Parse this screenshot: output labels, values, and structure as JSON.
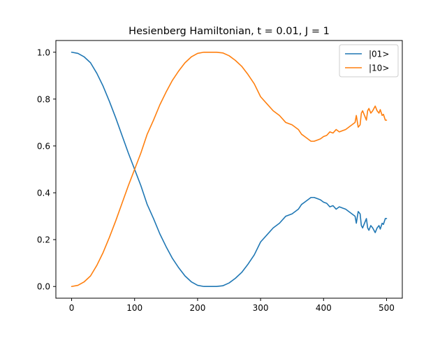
{
  "chart_data": {
    "type": "line",
    "title": "Hesienberg Hamiltonian, t = 0.01, J = 1",
    "xlabel": "",
    "ylabel": "",
    "xlim": [
      -25,
      525
    ],
    "ylim": [
      -0.05,
      1.05
    ],
    "xticks": [
      0,
      100,
      200,
      300,
      400,
      500
    ],
    "yticks": [
      0.0,
      0.2,
      0.4,
      0.6,
      0.8,
      1.0
    ],
    "xtick_labels": [
      "0",
      "100",
      "200",
      "300",
      "400",
      "500"
    ],
    "ytick_labels": [
      "0.0",
      "0.2",
      "0.4",
      "0.6",
      "0.8",
      "1.0"
    ],
    "grid": false,
    "legend_position": "top-right",
    "series": [
      {
        "name": "|01>",
        "color": "#1f77b4",
        "x": [
          0,
          10,
          20,
          30,
          40,
          50,
          60,
          70,
          80,
          90,
          100,
          110,
          120,
          130,
          140,
          150,
          160,
          170,
          180,
          190,
          200,
          210,
          220,
          230,
          240,
          250,
          260,
          270,
          280,
          290,
          300,
          310,
          320,
          330,
          340,
          350,
          355,
          360,
          365,
          370,
          375,
          380,
          385,
          390,
          395,
          400,
          405,
          410,
          415,
          420,
          425,
          430,
          435,
          440,
          445,
          450,
          452,
          455,
          458,
          460,
          462,
          465,
          468,
          470,
          472,
          475,
          478,
          480,
          482,
          485,
          488,
          490,
          493,
          495,
          498,
          500
        ],
        "y": [
          1.0,
          0.995,
          0.98,
          0.955,
          0.91,
          0.855,
          0.79,
          0.72,
          0.645,
          0.57,
          0.5,
          0.43,
          0.35,
          0.29,
          0.225,
          0.17,
          0.12,
          0.08,
          0.045,
          0.02,
          0.005,
          0.0,
          0.0,
          0.0,
          0.003,
          0.015,
          0.035,
          0.06,
          0.095,
          0.135,
          0.19,
          0.22,
          0.25,
          0.27,
          0.3,
          0.31,
          0.32,
          0.33,
          0.35,
          0.36,
          0.37,
          0.38,
          0.38,
          0.375,
          0.37,
          0.36,
          0.355,
          0.34,
          0.345,
          0.33,
          0.34,
          0.335,
          0.33,
          0.32,
          0.31,
          0.3,
          0.27,
          0.32,
          0.31,
          0.26,
          0.25,
          0.27,
          0.29,
          0.25,
          0.24,
          0.26,
          0.25,
          0.24,
          0.23,
          0.25,
          0.26,
          0.245,
          0.27,
          0.265,
          0.29,
          0.29
        ]
      },
      {
        "name": "|10>",
        "color": "#ff7f0e",
        "x": [
          0,
          10,
          20,
          30,
          40,
          50,
          60,
          70,
          80,
          90,
          100,
          110,
          120,
          130,
          140,
          150,
          160,
          170,
          180,
          190,
          200,
          210,
          220,
          230,
          240,
          250,
          260,
          270,
          280,
          290,
          300,
          310,
          320,
          330,
          340,
          350,
          355,
          360,
          365,
          370,
          375,
          380,
          385,
          390,
          395,
          400,
          405,
          410,
          415,
          420,
          425,
          430,
          435,
          440,
          445,
          450,
          452,
          455,
          458,
          460,
          462,
          465,
          468,
          470,
          472,
          475,
          478,
          480,
          482,
          485,
          488,
          490,
          493,
          495,
          498,
          500
        ],
        "y": [
          0.0,
          0.005,
          0.02,
          0.045,
          0.09,
          0.145,
          0.21,
          0.28,
          0.355,
          0.43,
          0.5,
          0.57,
          0.65,
          0.71,
          0.775,
          0.83,
          0.88,
          0.92,
          0.955,
          0.98,
          0.995,
          1.0,
          1.0,
          1.0,
          0.997,
          0.985,
          0.965,
          0.94,
          0.905,
          0.865,
          0.81,
          0.78,
          0.75,
          0.73,
          0.7,
          0.69,
          0.68,
          0.67,
          0.65,
          0.64,
          0.63,
          0.62,
          0.62,
          0.625,
          0.63,
          0.64,
          0.645,
          0.66,
          0.655,
          0.67,
          0.66,
          0.665,
          0.67,
          0.68,
          0.69,
          0.7,
          0.73,
          0.68,
          0.69,
          0.74,
          0.75,
          0.73,
          0.71,
          0.75,
          0.76,
          0.74,
          0.75,
          0.76,
          0.77,
          0.75,
          0.74,
          0.755,
          0.73,
          0.735,
          0.71,
          0.71
        ]
      }
    ]
  }
}
